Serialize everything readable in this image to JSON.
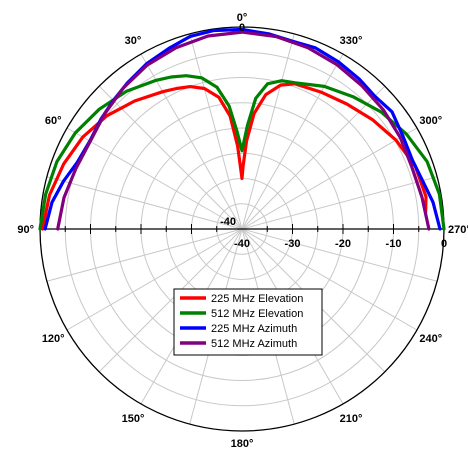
{
  "chart_data": {
    "type": "line",
    "subtype": "polar",
    "title": "",
    "rlim": [
      -40,
      0
    ],
    "r_ticks": [
      -40,
      -30,
      -20,
      -10,
      0
    ],
    "angle_ticks": [
      {
        "deg": 0,
        "label": "0°"
      },
      {
        "deg": 30,
        "label": "30°"
      },
      {
        "deg": 60,
        "label": "60°"
      },
      {
        "deg": 90,
        "label": "90°"
      },
      {
        "deg": 120,
        "label": "120°"
      },
      {
        "deg": 150,
        "label": "150°"
      },
      {
        "deg": 180,
        "label": "180°"
      },
      {
        "deg": 210,
        "label": "210°"
      },
      {
        "deg": 240,
        "label": "240°"
      },
      {
        "deg": 270,
        "label": "270°"
      },
      {
        "deg": 300,
        "label": "300°"
      },
      {
        "deg": 330,
        "label": "330°"
      }
    ],
    "grid": true,
    "legend_position": "bottom-center",
    "series": [
      {
        "name": "225 MHz Elevation",
        "color": "#ff0000",
        "angles_deg": [
          -90,
          -80,
          -70,
          -60,
          -50,
          -40,
          -30,
          -25,
          -20,
          -15,
          -10,
          -6,
          -3,
          -1,
          0,
          1,
          3,
          6,
          10,
          15,
          20,
          30,
          40,
          50,
          60,
          70,
          80,
          85
        ],
        "values_db": [
          -0.5,
          -1.3,
          -2.4,
          -3.6,
          -5.1,
          -6.9,
          -8.6,
          -9.3,
          -10.0,
          -11.2,
          -13.5,
          -17.5,
          -23.5,
          -28.5,
          -30.0,
          -27.5,
          -22.5,
          -17.0,
          -13.0,
          -10.5,
          -9.4,
          -8.7,
          -7.7,
          -6.3,
          -4.8,
          -3.5,
          -3.0,
          -3.5
        ]
      },
      {
        "name": "512 MHz Elevation",
        "color": "#008000",
        "angles_deg": [
          -90,
          -80,
          -70,
          -60,
          -50,
          -40,
          -30,
          -25,
          -20,
          -15,
          -10,
          -6,
          -3,
          0,
          3,
          6,
          10,
          15,
          20,
          30,
          40,
          50,
          60,
          70,
          80,
          90
        ],
        "values_db": [
          0.0,
          -0.5,
          -1.0,
          -1.9,
          -3.1,
          -4.4,
          -6.0,
          -6.8,
          -7.7,
          -9.0,
          -11.5,
          -15.5,
          -20.5,
          -24.5,
          -19.5,
          -14.0,
          -10.8,
          -9.6,
          -9.2,
          -7.4,
          -5.8,
          -4.0,
          -2.4,
          -1.0,
          -0.3,
          0.0
        ]
      },
      {
        "name": "225 MHz Azimuth",
        "color": "#0000ff",
        "angles_deg": [
          -90,
          -82,
          -75,
          -68,
          -60,
          -52,
          -45,
          -38,
          -30,
          -22,
          -15,
          -8,
          0,
          8,
          15,
          22,
          30,
          38,
          45,
          52,
          60,
          68,
          75,
          82,
          90
        ],
        "values_db": [
          -1.0,
          -2.0,
          -3.4,
          -4.8,
          -5.2,
          -4.6,
          -4.0,
          -3.2,
          -2.2,
          -1.4,
          -0.5,
          -0.3,
          -0.5,
          -1.0,
          -1.5,
          -1.3,
          -1.8,
          -2.3,
          -2.8,
          -2.3,
          -3.2,
          -3.6,
          -3.0,
          -1.8,
          -0.8
        ]
      },
      {
        "name": "512 MHz Azimuth",
        "color": "#800080",
        "angles_deg": [
          -90,
          -80,
          -70,
          -60,
          -50,
          -40,
          -30,
          -20,
          -10,
          0,
          10,
          20,
          30,
          40,
          50,
          60,
          70,
          80,
          90
        ],
        "values_db": [
          -3.5,
          -4.2,
          -5.0,
          -5.3,
          -4.5,
          -3.5,
          -2.5,
          -1.8,
          -1.2,
          -1.0,
          -1.3,
          -1.8,
          -2.4,
          -3.0,
          -3.4,
          -3.8,
          -4.2,
          -3.8,
          -3.0
        ]
      }
    ]
  }
}
